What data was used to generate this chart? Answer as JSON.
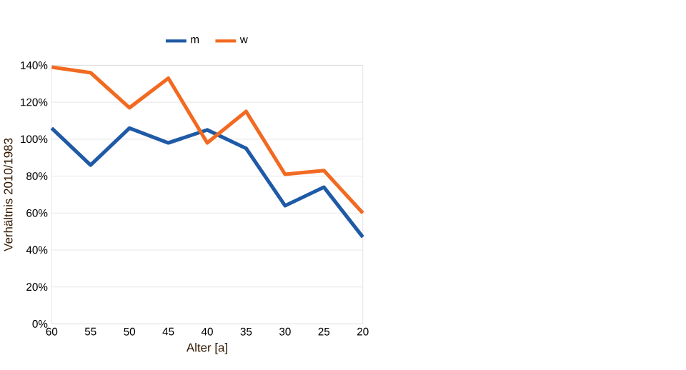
{
  "chart_data": {
    "type": "line",
    "xlabel": "Alter [a]",
    "ylabel": "Verhältnis 2010/1983",
    "x": [
      60,
      55,
      50,
      45,
      40,
      35,
      30,
      25,
      20
    ],
    "series": [
      {
        "name": "m",
        "color": "#1f5aa6",
        "values": [
          106,
          86,
          106,
          98,
          105,
          95,
          64,
          74,
          47
        ]
      },
      {
        "name": "w",
        "color": "#f26a21",
        "values": [
          139,
          136,
          117,
          133,
          98,
          115,
          81,
          83,
          60
        ]
      }
    ],
    "xlim": [
      60,
      20
    ],
    "xticks": [
      60,
      55,
      50,
      45,
      40,
      35,
      30,
      25,
      20
    ],
    "ylim": [
      0,
      140
    ],
    "yticks": [
      {
        "value": 0,
        "label": "0%"
      },
      {
        "value": 20,
        "label": "20%"
      },
      {
        "value": 40,
        "label": "40%"
      },
      {
        "value": 60,
        "label": "60%"
      },
      {
        "value": 80,
        "label": "80%"
      },
      {
        "value": 100,
        "label": "100%"
      },
      {
        "value": 120,
        "label": "120%"
      },
      {
        "value": 140,
        "label": "140%"
      }
    ],
    "grid": "y",
    "legend": "top",
    "marker": "none",
    "line_style": "solid"
  }
}
